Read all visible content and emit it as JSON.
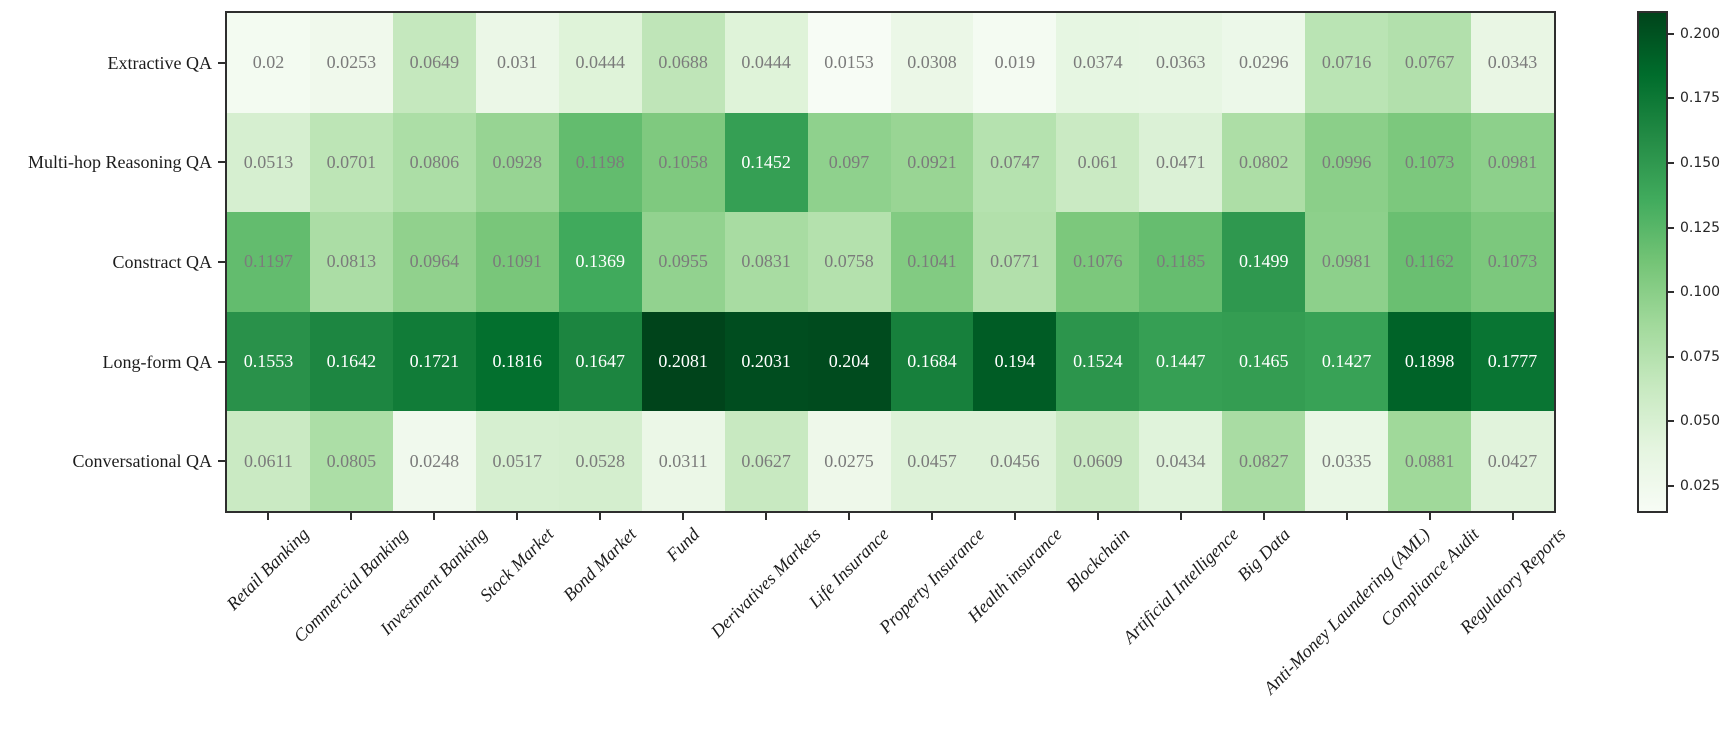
{
  "chart_data": {
    "type": "heatmap",
    "rows": [
      "Extractive QA",
      "Multi-hop Reasoning QA",
      "Constract QA",
      "Long-form QA",
      "Conversational QA"
    ],
    "columns": [
      "Retail Banking",
      "Commercial Banking",
      "Investment Banking",
      "Stock Market",
      "Bond Market",
      "Fund",
      "Derivatives Markets",
      "Life Insurance",
      "Property Insurance",
      "Health insurance",
      "Blockchain",
      "Artificial Intelligence",
      "Big Data",
      "Anti-Money Laundering (AML)",
      "Compliance Audit",
      "Regulatory Reports"
    ],
    "values": [
      [
        0.02,
        0.0253,
        0.0649,
        0.031,
        0.0444,
        0.0688,
        0.0444,
        0.0153,
        0.0308,
        0.019,
        0.0374,
        0.0363,
        0.0296,
        0.0716,
        0.0767,
        0.0343
      ],
      [
        0.0513,
        0.0701,
        0.0806,
        0.0928,
        0.1198,
        0.1058,
        0.1452,
        0.097,
        0.0921,
        0.0747,
        0.061,
        0.0471,
        0.0802,
        0.0996,
        0.1073,
        0.0981
      ],
      [
        0.1197,
        0.0813,
        0.0964,
        0.1091,
        0.1369,
        0.0955,
        0.0831,
        0.0758,
        0.1041,
        0.0771,
        0.1076,
        0.1185,
        0.1499,
        0.0981,
        0.1162,
        0.1073
      ],
      [
        0.1553,
        0.1642,
        0.1721,
        0.1816,
        0.1647,
        0.2081,
        0.2031,
        0.204,
        0.1684,
        0.194,
        0.1524,
        0.1447,
        0.1465,
        0.1427,
        0.1898,
        0.1777
      ],
      [
        0.0611,
        0.0805,
        0.0248,
        0.0517,
        0.0528,
        0.0311,
        0.0627,
        0.0275,
        0.0457,
        0.0456,
        0.0609,
        0.0434,
        0.0827,
        0.0335,
        0.0881,
        0.0427
      ]
    ],
    "vmin": 0.0153,
    "vmax": 0.2081,
    "colormap": "Greens",
    "colormap_stops": [
      "#f7fcf5",
      "#e5f5e0",
      "#c7e9c0",
      "#a1d99b",
      "#74c476",
      "#41ab5d",
      "#238b45",
      "#006d2c",
      "#00441b"
    ],
    "annotation_colors": {
      "on_light": "#7b7b7b",
      "on_dark": "#ffffff"
    },
    "axis_color": "#2e2e2e",
    "grid": false,
    "legend_position": "none",
    "colorbar": {
      "position": "right",
      "tick_labels": [
        "0.025",
        "0.050",
        "0.075",
        "0.100",
        "0.125",
        "0.150",
        "0.175",
        "0.200"
      ],
      "tick_values": [
        0.025,
        0.05,
        0.075,
        0.1,
        0.125,
        0.15,
        0.175,
        0.2
      ]
    }
  }
}
